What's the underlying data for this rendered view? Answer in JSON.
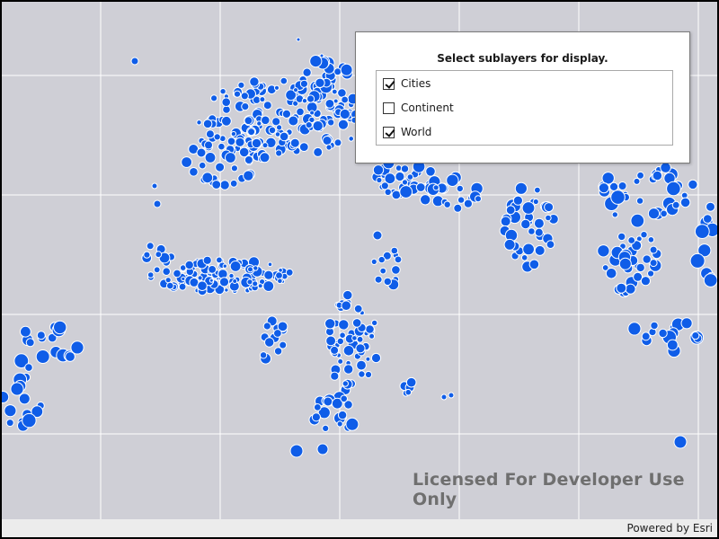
{
  "panel": {
    "title": "Select sublayers for display.",
    "sublayers": [
      {
        "label": "Cities",
        "checked": true
      },
      {
        "label": "Continent",
        "checked": false
      },
      {
        "label": "World",
        "checked": true
      }
    ]
  },
  "watermark": "Licensed For Developer Use Only",
  "attribution": "Powered by Esri",
  "colors": {
    "background": "#cfcfd6",
    "grid": "#ffffff",
    "city_marker": "#0f5de8",
    "city_outline": "#ffffff"
  }
}
